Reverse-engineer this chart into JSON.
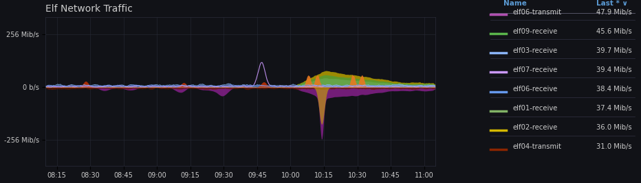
{
  "title": "Elf Network Traffic",
  "bg_color": "#111217",
  "plot_bg_color": "#111217",
  "grid_color": "#2a2d3a",
  "text_color": "#cccccc",
  "title_color": "#cccccc",
  "legend_header_color": "#5b9bd5",
  "x_tick_labels": [
    "08:15",
    "08:30",
    "08:45",
    "09:00",
    "09:15",
    "09:30",
    "09:45",
    "10:00",
    "10:15",
    "10:30",
    "10:45",
    "11:00"
  ],
  "y_tick_labels": [
    "256 Mib/s",
    "0 b/s",
    "-256 Mib/s"
  ],
  "y_tick_values": [
    256,
    0,
    -256
  ],
  "ylim": [
    -380,
    340
  ],
  "legend_items": [
    {
      "name": "elf06-transmit",
      "last": "47.9 Mib/s",
      "color": "#b04fb0"
    },
    {
      "name": "elf09-receive",
      "last": "45.6 Mib/s",
      "color": "#5ab54b"
    },
    {
      "name": "elf03-receive",
      "last": "39.7 Mib/s",
      "color": "#8ab4f8"
    },
    {
      "name": "elf07-receive",
      "last": "39.4 Mib/s",
      "color": "#cc99ff"
    },
    {
      "name": "elf06-receive",
      "last": "38.4 Mib/s",
      "color": "#6699ee"
    },
    {
      "name": "elf01-receive",
      "last": "37.4 Mib/s",
      "color": "#82b366"
    },
    {
      "name": "elf02-receive",
      "last": "36.0 Mib/s",
      "color": "#d4b800"
    },
    {
      "name": "elf04-transmit",
      "last": "31.0 Mib/s",
      "color": "#8b2500"
    }
  ]
}
